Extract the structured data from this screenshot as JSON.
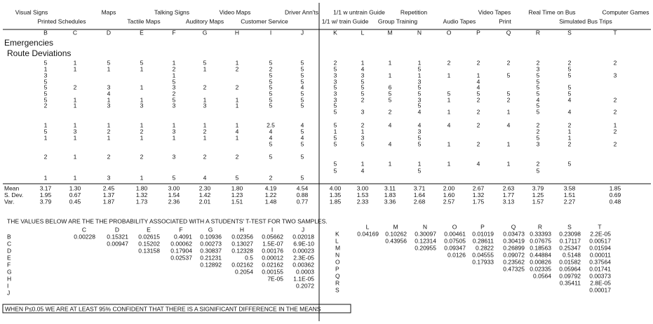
{
  "headers_row1": [
    "Visual Signs",
    "Maps",
    "Talking Signs",
    "Video Maps",
    "Driver Ann'ts",
    "1/1 w untrain Guide",
    "Repetition",
    "Video Tapes",
    "Real Time on Bus",
    "Computer Games"
  ],
  "headers_row2": [
    "Printed Schedules",
    "Tactile Maps",
    "Auditory Maps",
    "Customer Service",
    "1/1 w/ train Guide",
    "Group Training",
    "Audio Tapes",
    "Print",
    "Simulated Bus Trips"
  ],
  "columns": [
    "B",
    "C",
    "D",
    "E",
    "F",
    "G",
    "H",
    "I",
    "J",
    "K",
    "L",
    "M",
    "N",
    "O",
    "P",
    "Q",
    "R",
    "S",
    "T"
  ],
  "sections": [
    "Emergencies",
    "Route Deviations"
  ],
  "rows": [
    [
      5,
      1,
      5,
      5,
      1,
      5,
      1,
      5,
      5,
      2,
      1,
      1,
      1,
      2,
      2,
      2,
      2,
      2,
      2
    ],
    [
      1,
      1,
      1,
      1,
      2,
      1,
      2,
      2,
      5,
      5,
      4,
      null,
      5,
      null,
      null,
      null,
      3,
      5,
      null
    ],
    [
      3,
      null,
      null,
      null,
      1,
      null,
      null,
      5,
      5,
      3,
      3,
      1,
      1,
      1,
      1,
      5,
      5,
      5,
      3
    ],
    [
      5,
      null,
      null,
      null,
      5,
      null,
      null,
      5,
      5,
      3,
      5,
      null,
      3,
      null,
      4,
      null,
      5,
      null,
      null
    ],
    [
      5,
      2,
      3,
      1,
      3,
      2,
      2,
      5,
      4,
      5,
      5,
      6,
      5,
      null,
      4,
      null,
      5,
      5,
      null
    ],
    [
      5,
      null,
      4,
      null,
      2,
      null,
      null,
      5,
      5,
      3,
      5,
      5,
      5,
      5,
      5,
      5,
      5,
      5,
      null
    ],
    [
      5,
      1,
      1,
      1,
      5,
      1,
      1,
      5,
      5,
      3,
      2,
      5,
      3,
      1,
      2,
      2,
      4,
      4,
      2
    ],
    [
      2,
      1,
      3,
      3,
      3,
      3,
      1,
      5,
      5,
      5,
      null,
      null,
      5,
      null,
      null,
      null,
      5,
      null,
      null
    ],
    [
      null,
      null,
      null,
      null,
      null,
      null,
      null,
      null,
      null,
      5,
      3,
      2,
      4,
      1,
      2,
      1,
      5,
      4,
      2
    ],
    [
      1,
      1,
      1,
      1,
      1,
      1,
      1,
      2.5,
      4,
      5,
      2,
      4,
      4,
      4,
      2,
      4,
      2,
      2,
      1
    ],
    [
      5,
      3,
      2,
      2,
      3,
      2,
      4,
      4,
      5,
      1,
      1,
      null,
      3,
      null,
      null,
      null,
      2,
      1,
      2
    ],
    [
      1,
      1,
      1,
      1,
      1,
      1,
      1,
      4,
      4,
      5,
      3,
      null,
      5,
      null,
      null,
      null,
      5,
      1,
      null
    ],
    [
      null,
      null,
      null,
      null,
      null,
      null,
      null,
      5,
      5,
      5,
      5,
      4,
      5,
      1,
      2,
      1,
      3,
      2,
      2
    ],
    [
      2,
      1,
      2,
      2,
      3,
      2,
      2,
      5,
      5,
      null,
      null,
      null,
      null,
      null,
      null,
      null,
      null,
      null,
      null
    ],
    [
      null,
      null,
      null,
      null,
      null,
      null,
      null,
      null,
      null,
      5,
      1,
      1,
      1,
      1,
      4,
      1,
      2,
      5,
      null
    ],
    [
      null,
      null,
      null,
      null,
      null,
      null,
      null,
      null,
      null,
      5,
      4,
      null,
      5,
      null,
      null,
      null,
      5,
      null,
      null
    ],
    [
      1,
      1,
      3,
      1,
      5,
      4,
      5,
      2,
      5,
      null,
      null,
      null,
      null,
      null,
      null,
      null,
      null,
      null,
      null
    ]
  ],
  "stats": [
    {
      "label": "Mean",
      "values": [
        "3.17",
        "1.30",
        "2.45",
        "1.80",
        "3.00",
        "2.30",
        "1.80",
        "4.19",
        "4.54",
        "4.00",
        "3.00",
        "3.11",
        "3.71",
        "2.00",
        "2.67",
        "2.63",
        "3.79",
        "3.58",
        "1.85"
      ]
    },
    {
      "label": "S. Dev.",
      "values": [
        "1.95",
        "0.67",
        "1.37",
        "1.32",
        "1.54",
        "1.42",
        "1.23",
        "1.22",
        "0.88",
        "1.35",
        "1.53",
        "1.83",
        "1.64",
        "1.60",
        "1.32",
        "1.77",
        "1.25",
        "1.51",
        "0.69"
      ]
    },
    {
      "label": "Var.",
      "values": [
        "3.79",
        "0.45",
        "1.87",
        "1.73",
        "2.36",
        "2.01",
        "1.51",
        "1.48",
        "0.77",
        "1.85",
        "2.33",
        "3.36",
        "2.68",
        "2.57",
        "1.75",
        "3.13",
        "1.57",
        "2.27",
        "0.48"
      ]
    }
  ],
  "note": "THE VALUES BELOW ARE THE THE PROBABILITY ASSOCIATED WITH A STUDENTS' T-TEST FOR TWO SAMPLES.",
  "left_matrix": {
    "columns": [
      "C",
      "D",
      "E",
      "F",
      "G",
      "H",
      "I",
      "J"
    ],
    "rows": [
      {
        "label": "B",
        "values": [
          "0.00228",
          "0.15321",
          "0.02615",
          "0.4091",
          "0.10936",
          "0.02356",
          "0.05662",
          "0.02018"
        ]
      },
      {
        "label": "C",
        "values": [
          "0.00947",
          "0.15202",
          "0.00062",
          "0.00273",
          "0.13027",
          "1.5E-07",
          "6.9E-10"
        ]
      },
      {
        "label": "D",
        "values": [
          "0.13158",
          "0.17904",
          "0.30837",
          "0.12328",
          "0.00176",
          "0.00023"
        ]
      },
      {
        "label": "E",
        "values": [
          "0.02537",
          "0.21231",
          "0.5",
          "0.00012",
          "2.3E-05"
        ]
      },
      {
        "label": "F",
        "values": [
          "0.12892",
          "0.02162",
          "0.02162",
          "0.00362"
        ]
      },
      {
        "label": "G",
        "values": [
          "0.2054",
          "0.00155",
          "0.0003"
        ]
      },
      {
        "label": "H",
        "values": [
          "7E-05",
          "1.1E-05"
        ]
      },
      {
        "label": "I",
        "values": [
          "0.2072"
        ]
      },
      {
        "label": "J",
        "values": []
      }
    ]
  },
  "right_matrix": {
    "columns": [
      "L",
      "M",
      "N",
      "O",
      "P",
      "Q",
      "R",
      "S",
      "T"
    ],
    "rows": [
      {
        "label": "K",
        "values": [
          "0.04169",
          "0.10262",
          "0.30097",
          "0.00461",
          "0.01019",
          "0.03473",
          "0.33393",
          "0.23098",
          "2.2E-05"
        ]
      },
      {
        "label": "L",
        "values": [
          "0.43956",
          "0.12314",
          "0.07505",
          "0.28611",
          "0.30419",
          "0.07675",
          "0.17117",
          "0.00517"
        ]
      },
      {
        "label": "M",
        "values": [
          "0.20955",
          "0.09347",
          "0.2822",
          "0.26899",
          "0.18563",
          "0.25347",
          "0.01594"
        ]
      },
      {
        "label": "N",
        "values": [
          "0.0126",
          "0.04555",
          "0.09072",
          "0.44884",
          "0.5148",
          "0.00011"
        ]
      },
      {
        "label": "O",
        "values": [
          "0.17933",
          "0.23562",
          "0.00826",
          "0.01582",
          "0.37564"
        ]
      },
      {
        "label": "P",
        "values": [
          "0.47325",
          "0.02335",
          "0.05964",
          "0.01741"
        ]
      },
      {
        "label": "Q",
        "values": [
          "0.0564",
          "0.09792",
          "0.00373"
        ]
      },
      {
        "label": "R",
        "values": [
          "0.35411",
          "2.8E-05"
        ]
      },
      {
        "label": "S",
        "values": [
          "0.00017"
        ]
      }
    ]
  },
  "footer": "WHEN P≤0.05 WE ARE AT LEAST 95% CONFIDENT THAT THERE IS A SIGNIFICANT DIFFERENCE IN THE MEANS"
}
